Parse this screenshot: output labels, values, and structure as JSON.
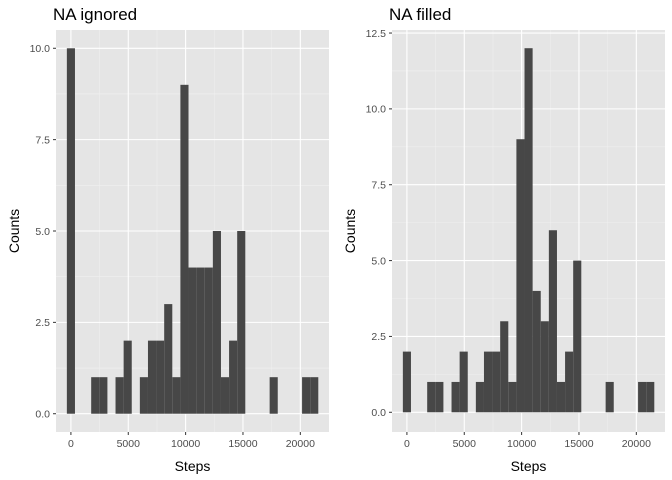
{
  "chart_data": [
    {
      "type": "bar",
      "title": "NA ignored",
      "xlabel": "Steps",
      "ylabel": "Counts",
      "xlim": [
        -1300,
        22500
      ],
      "ylim": [
        -0.5,
        10.5
      ],
      "bin_width": 707,
      "x_ticks": [
        0,
        5000,
        10000,
        15000,
        20000
      ],
      "x_tick_labels": [
        "0",
        "5000",
        "10000",
        "15000",
        "20000"
      ],
      "y_ticks": [
        0,
        2.5,
        5,
        7.5,
        10
      ],
      "y_tick_labels": [
        "0.0",
        "2.5",
        "5.0",
        "7.5",
        "10.0"
      ],
      "bins": [
        {
          "x": 0,
          "count": 10
        },
        {
          "x": 2121,
          "count": 1
        },
        {
          "x": 2828,
          "count": 1
        },
        {
          "x": 4243,
          "count": 1
        },
        {
          "x": 4950,
          "count": 2
        },
        {
          "x": 6364,
          "count": 1
        },
        {
          "x": 7071,
          "count": 2
        },
        {
          "x": 7778,
          "count": 2
        },
        {
          "x": 8485,
          "count": 3
        },
        {
          "x": 9192,
          "count": 1
        },
        {
          "x": 9899,
          "count": 9
        },
        {
          "x": 10606,
          "count": 4
        },
        {
          "x": 11314,
          "count": 4
        },
        {
          "x": 12021,
          "count": 4
        },
        {
          "x": 12728,
          "count": 5
        },
        {
          "x": 13435,
          "count": 1
        },
        {
          "x": 14142,
          "count": 2
        },
        {
          "x": 14849,
          "count": 5
        },
        {
          "x": 17678,
          "count": 1
        },
        {
          "x": 20506,
          "count": 1
        },
        {
          "x": 21213,
          "count": 1
        }
      ],
      "grid": true
    },
    {
      "type": "bar",
      "title": "NA filled",
      "xlabel": "Steps",
      "ylabel": "Counts",
      "xlim": [
        -1300,
        22500
      ],
      "ylim": [
        -0.65,
        12.6
      ],
      "bin_width": 707,
      "x_ticks": [
        0,
        5000,
        10000,
        15000,
        20000
      ],
      "x_tick_labels": [
        "0",
        "5000",
        "10000",
        "15000",
        "20000"
      ],
      "y_ticks": [
        0,
        2.5,
        5,
        7.5,
        10,
        12.5
      ],
      "y_tick_labels": [
        "0.0",
        "2.5",
        "5.0",
        "7.5",
        "10.0",
        "12.5"
      ],
      "bins": [
        {
          "x": 0,
          "count": 2
        },
        {
          "x": 2121,
          "count": 1
        },
        {
          "x": 2828,
          "count": 1
        },
        {
          "x": 4243,
          "count": 1
        },
        {
          "x": 4950,
          "count": 2
        },
        {
          "x": 6364,
          "count": 1
        },
        {
          "x": 7071,
          "count": 2
        },
        {
          "x": 7778,
          "count": 2
        },
        {
          "x": 8485,
          "count": 3
        },
        {
          "x": 9192,
          "count": 1
        },
        {
          "x": 9899,
          "count": 9
        },
        {
          "x": 10606,
          "count": 12
        },
        {
          "x": 11314,
          "count": 4
        },
        {
          "x": 12021,
          "count": 3
        },
        {
          "x": 12728,
          "count": 6
        },
        {
          "x": 13435,
          "count": 1
        },
        {
          "x": 14142,
          "count": 2
        },
        {
          "x": 14849,
          "count": 5
        },
        {
          "x": 17678,
          "count": 1
        },
        {
          "x": 20506,
          "count": 1
        },
        {
          "x": 21213,
          "count": 1
        }
      ],
      "grid": true
    }
  ]
}
